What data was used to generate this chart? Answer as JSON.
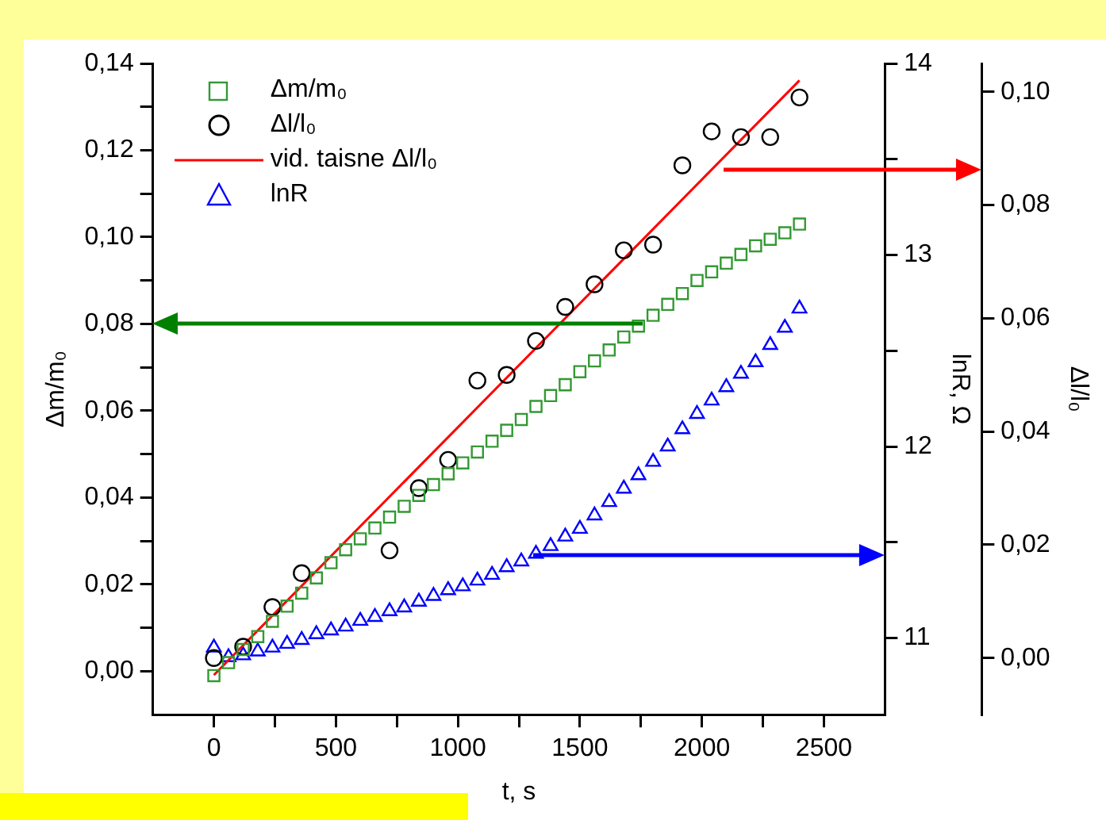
{
  "chart_data": {
    "type": "scatter",
    "xlabel": "t, s",
    "ylabel": "Δm/m₀",
    "y2label": "lnR, Ω",
    "y3label": "Δl/l₀",
    "legend": "top left",
    "grid": false,
    "xlim": [
      -250,
      2750
    ],
    "xticks": [
      0,
      {
        "value": 250,
        "label": null
      },
      500,
      {
        "value": 750,
        "label": null
      },
      1000,
      {
        "value": 1250,
        "label": null
      },
      1500,
      {
        "value": 1750,
        "label": null
      },
      2000,
      {
        "value": 2250,
        "label": null
      },
      2500
    ],
    "ylim": [
      -0.01,
      0.14
    ],
    "yticks": [
      {
        "value": 0,
        "label": "0,00"
      },
      {
        "value": 0.01,
        "label": null
      },
      {
        "value": 0.02,
        "label": "0,02"
      },
      {
        "value": 0.03,
        "label": null
      },
      {
        "value": 0.04,
        "label": "0,04"
      },
      {
        "value": 0.05,
        "label": null
      },
      {
        "value": 0.06,
        "label": "0,06"
      },
      {
        "value": 0.07,
        "label": null
      },
      {
        "value": 0.08,
        "label": "0,08"
      },
      {
        "value": 0.09,
        "label": null
      },
      {
        "value": 0.1,
        "label": "0,10"
      },
      {
        "value": 0.11,
        "label": null
      },
      {
        "value": 0.12,
        "label": "0,12"
      },
      {
        "value": 0.13,
        "label": null
      },
      {
        "value": 0.14,
        "label": "0,14"
      }
    ],
    "y2lim": [
      10.6,
      14
    ],
    "y2ticks": [
      11,
      {
        "value": 11.5,
        "label": null
      },
      12,
      {
        "value": 12.5,
        "label": null
      },
      13,
      {
        "value": 13.5,
        "label": null
      },
      14
    ],
    "y3lim": [
      -0.01,
      0.105
    ],
    "y3ticks": [
      {
        "value": 0,
        "label": "0,00"
      },
      {
        "value": 0.02,
        "label": "0,02"
      },
      {
        "value": 0.04,
        "label": "0,04"
      },
      {
        "value": 0.06,
        "label": "0,06"
      },
      {
        "value": 0.08,
        "label": "0,08"
      },
      {
        "value": 0.1,
        "label": "0,10"
      }
    ],
    "series": [
      {
        "name": "Δm/m₀",
        "type": "scatter",
        "marker": "square",
        "color": "#339933",
        "axis": "y",
        "x": [
          0,
          60,
          120,
          180,
          240,
          300,
          360,
          420,
          480,
          540,
          600,
          660,
          720,
          780,
          840,
          900,
          960,
          1020,
          1080,
          1140,
          1200,
          1260,
          1320,
          1380,
          1440,
          1500,
          1560,
          1620,
          1680,
          1740,
          1800,
          1860,
          1920,
          1980,
          2040,
          2100,
          2160,
          2220,
          2280,
          2340,
          2400
        ],
        "values": [
          -0.001,
          0.002,
          0.005,
          0.008,
          0.0115,
          0.015,
          0.018,
          0.0215,
          0.025,
          0.028,
          0.0305,
          0.033,
          0.0355,
          0.038,
          0.0405,
          0.043,
          0.0455,
          0.048,
          0.0505,
          0.053,
          0.0555,
          0.058,
          0.061,
          0.0635,
          0.066,
          0.069,
          0.0715,
          0.074,
          0.077,
          0.0795,
          0.082,
          0.0845,
          0.087,
          0.09,
          0.092,
          0.094,
          0.096,
          0.098,
          0.0995,
          0.101,
          0.103
        ]
      },
      {
        "name": "Δl/l₀",
        "type": "scatter",
        "marker": "circle",
        "color": "#000000",
        "axis": "y3",
        "x": [
          0,
          120,
          240,
          360,
          720,
          840,
          960,
          1080,
          1200,
          1320,
          1440,
          1560,
          1680,
          1800,
          1920,
          2040,
          2160,
          2280,
          2400
        ],
        "values": [
          0,
          0.002,
          0.009,
          0.015,
          0.019,
          0.03,
          0.035,
          0.049,
          0.05,
          0.056,
          0.062,
          0.066,
          0.072,
          0.073,
          0.087,
          0.093,
          0.092,
          0.092,
          0.099
        ]
      },
      {
        "name": "vid. taisne Δl/l₀",
        "type": "line",
        "marker": "none",
        "line_style": "solid",
        "color": "#ff0000",
        "axis": "y3",
        "x": [
          0,
          2400
        ],
        "values": [
          -0.003,
          0.102
        ]
      },
      {
        "name": "lnR",
        "type": "scatter",
        "marker": "triangle",
        "color": "#0000ff",
        "axis": "y2",
        "x": [
          0,
          60,
          120,
          180,
          240,
          300,
          360,
          420,
          480,
          540,
          600,
          660,
          720,
          780,
          840,
          900,
          960,
          1020,
          1080,
          1140,
          1200,
          1260,
          1320,
          1380,
          1440,
          1500,
          1560,
          1620,
          1680,
          1740,
          1800,
          1860,
          1920,
          1980,
          2040,
          2100,
          2160,
          2220,
          2280,
          2340,
          2400
        ],
        "values": [
          10.95,
          10.9,
          10.91,
          10.93,
          10.95,
          10.97,
          10.99,
          11.02,
          11.04,
          11.06,
          11.09,
          11.11,
          11.14,
          11.16,
          11.19,
          11.22,
          11.25,
          11.27,
          11.3,
          11.33,
          11.37,
          11.4,
          11.44,
          11.48,
          11.53,
          11.57,
          11.64,
          11.71,
          11.78,
          11.85,
          11.92,
          12.0,
          12.09,
          12.17,
          12.24,
          12.31,
          12.38,
          12.44,
          12.53,
          12.62,
          12.72
        ]
      }
    ]
  }
}
